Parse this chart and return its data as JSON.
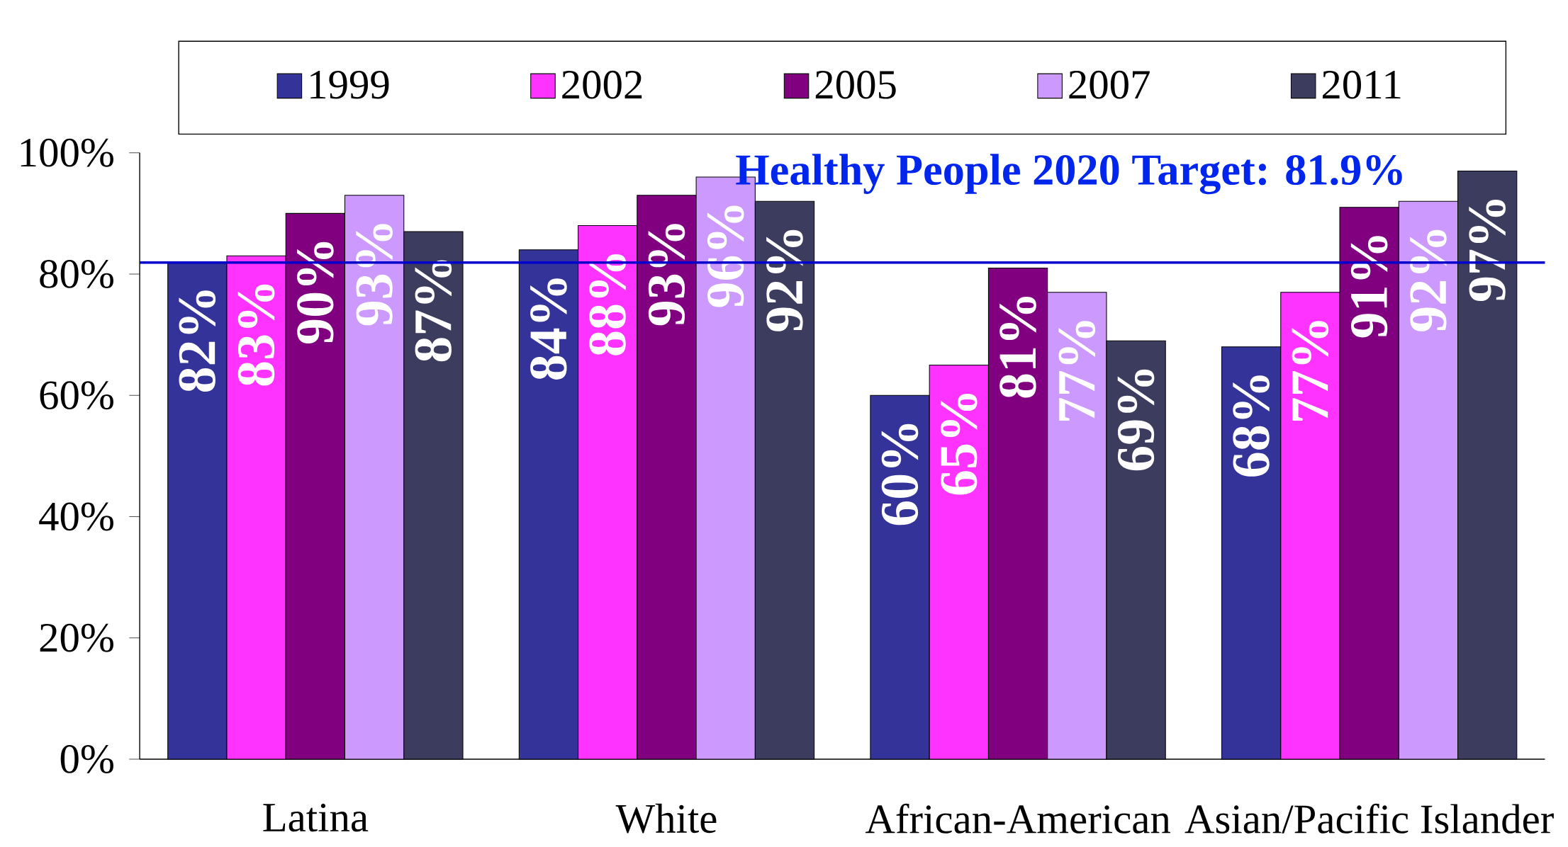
{
  "chart_data": {
    "type": "bar",
    "categories": [
      "Latina",
      "White",
      "African-American",
      "Asian/Pacific Islander"
    ],
    "series": [
      {
        "name": "1999",
        "color": "#333399",
        "values": [
          82,
          84,
          60,
          68
        ],
        "value_labels": [
          "82%",
          "84%",
          "60%",
          "68%"
        ]
      },
      {
        "name": "2002",
        "color": "#ff33ff",
        "values": [
          83,
          88,
          65,
          77
        ],
        "value_labels": [
          "83%",
          "88%",
          "65%",
          "77%"
        ]
      },
      {
        "name": "2005",
        "color": "#800080",
        "values": [
          90,
          93,
          81,
          91
        ],
        "value_labels": [
          "90%",
          "93%",
          "81%",
          "91%"
        ]
      },
      {
        "name": "2007",
        "color": "#cc99ff",
        "values": [
          93,
          96,
          77,
          92
        ],
        "value_labels": [
          "93%",
          "96%",
          "77%",
          "92%"
        ]
      },
      {
        "name": "2011",
        "color": "#3c3c5e",
        "values": [
          87,
          92,
          69,
          97
        ],
        "value_labels": [
          "87%",
          "92%",
          "69%",
          "97%"
        ]
      }
    ],
    "ylim": [
      0,
      100
    ],
    "yticks": [
      {
        "value": 0,
        "label": "0%"
      },
      {
        "value": 20,
        "label": "20%"
      },
      {
        "value": 40,
        "label": "40%"
      },
      {
        "value": 60,
        "label": "60%"
      },
      {
        "value": 80,
        "label": "80%"
      },
      {
        "value": 100,
        "label": "100%"
      }
    ],
    "ref_lines": [
      {
        "axis": "y",
        "value": 81.9,
        "label": "Healthy People 2020 Target: 81.9%",
        "color": "#0000cc"
      }
    ],
    "legend": "top",
    "grid": false
  }
}
